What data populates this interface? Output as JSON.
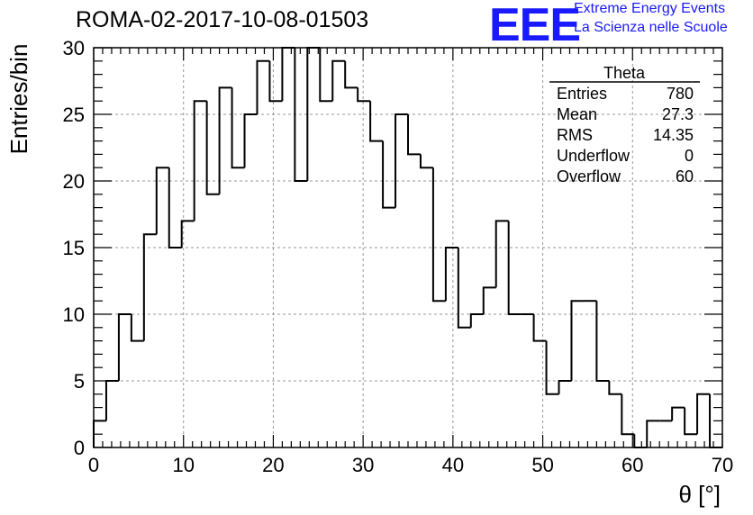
{
  "header": {
    "run_title": "ROMA-02-2017-10-08-01503",
    "logo_text": "EEE",
    "logo_line1": "Extreme Energy Events",
    "logo_line2": "La Scienza nelle Scuole",
    "logo_color": "#1a1aff"
  },
  "stats_box": {
    "title": "Theta",
    "rows": [
      {
        "label": "Entries",
        "value": "780"
      },
      {
        "label": "Mean",
        "value": "27.3"
      },
      {
        "label": "RMS",
        "value": "14.35"
      },
      {
        "label": "Underflow",
        "value": "0"
      },
      {
        "label": "Overflow",
        "value": "60"
      }
    ]
  },
  "chart_data": {
    "type": "histogram",
    "xlabel": "θ [°]",
    "ylabel": "Entries/bin",
    "xlim": [
      0,
      70
    ],
    "ylim": [
      0,
      30
    ],
    "x_ticks": [
      0,
      10,
      20,
      30,
      40,
      50,
      60,
      70
    ],
    "y_ticks": [
      0,
      5,
      10,
      15,
      20,
      25,
      30
    ],
    "grid": true,
    "bin_width": 1.4,
    "values": [
      2,
      5,
      10,
      8,
      16,
      21,
      15,
      17,
      26,
      19,
      27,
      21,
      25,
      29,
      26,
      30,
      20,
      30,
      26,
      29,
      27,
      26,
      23,
      18,
      25,
      22,
      21,
      11,
      15,
      9,
      10,
      12,
      17,
      10,
      10,
      8,
      4,
      5,
      11,
      11,
      5,
      4,
      1,
      0,
      2,
      2,
      3,
      1,
      4,
      0
    ],
    "line_color": "#000000"
  }
}
